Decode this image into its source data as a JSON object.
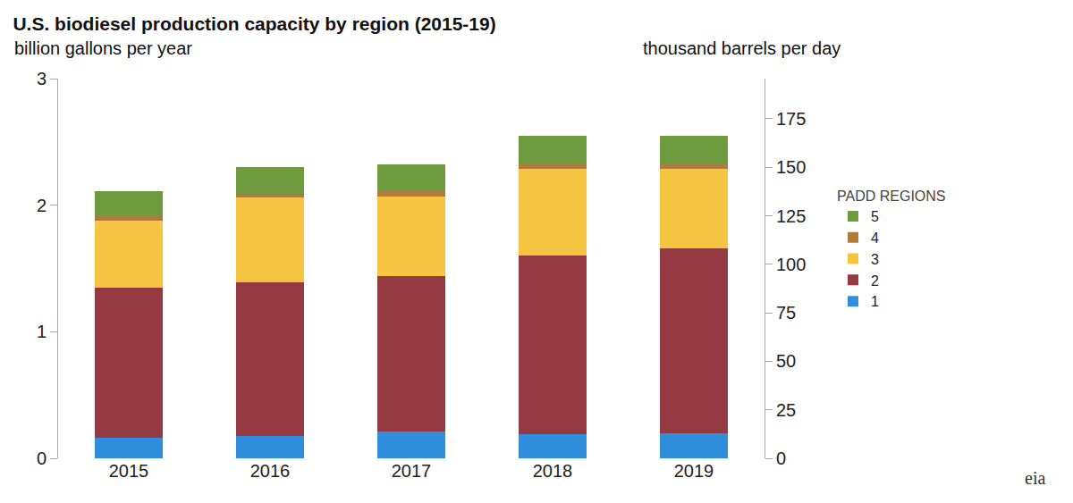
{
  "chart_data": {
    "type": "bar",
    "title": "U.S. biodiesel production capacity by region (2015-19)",
    "ylabel": "billion gallons per year",
    "y2label": "thousand barrels per day",
    "legend_title": "PADD REGIONS",
    "annotations": [
      "eia"
    ],
    "categories": [
      "2015",
      "2016",
      "2017",
      "2018",
      "2019"
    ],
    "series": [
      {
        "name": "1",
        "color": "#2f8fdc",
        "values": [
          0.16,
          0.18,
          0.21,
          0.19,
          0.2
        ]
      },
      {
        "name": "2",
        "color": "#953a43",
        "values": [
          1.19,
          1.21,
          1.23,
          1.41,
          1.46
        ]
      },
      {
        "name": "3",
        "color": "#f5c542",
        "values": [
          0.53,
          0.67,
          0.63,
          0.69,
          0.63
        ]
      },
      {
        "name": "4",
        "color": "#b27a3b",
        "values": [
          0.04,
          0.03,
          0.04,
          0.03,
          0.04
        ]
      },
      {
        "name": "5",
        "color": "#6e9b3d",
        "values": [
          0.19,
          0.21,
          0.21,
          0.23,
          0.22
        ]
      }
    ],
    "stacked": true,
    "ylim": [
      0,
      3
    ],
    "yticks": [
      0,
      1,
      2,
      3
    ],
    "y2lim": [
      0,
      195.7
    ],
    "y2ticks": [
      0,
      25,
      50,
      75,
      100,
      125,
      150,
      175
    ],
    "grid": false,
    "legend": "right"
  }
}
